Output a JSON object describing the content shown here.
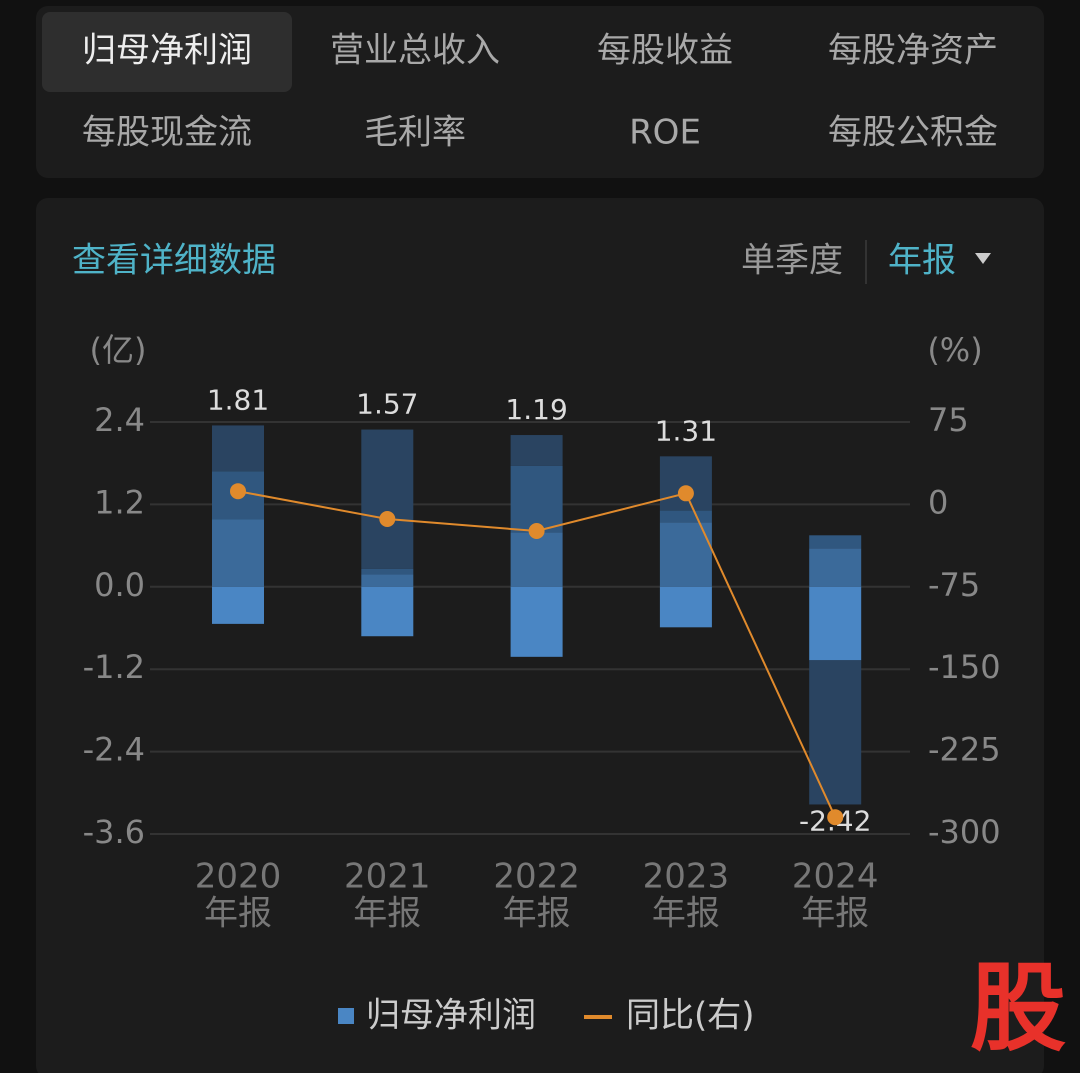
{
  "tabs": [
    "归母净利润",
    "营业总收入",
    "每股收益",
    "每股净资产",
    "每股现金流",
    "毛利率",
    "ROE",
    "每股公积金"
  ],
  "link": "查看详细数据",
  "period_options": [
    "单季度",
    "年报"
  ],
  "watermark": "股",
  "chart_data": {
    "type": "bar",
    "y_unit": "(亿)",
    "y2_unit": "(%)",
    "categories": [
      "2020",
      "2021",
      "2022",
      "2023",
      "2024"
    ],
    "category_suffix": [
      "年报",
      "年报",
      "年报",
      "年报",
      "年报"
    ],
    "ylim": [
      -3.6,
      2.4
    ],
    "yticks": [
      2.4,
      1.2,
      {
        "value": 0,
        "label": "0.0"
      },
      -1.2,
      -2.4,
      -3.6
    ],
    "y2lim": [
      -300,
      75
    ],
    "y2ticks": [
      75,
      0,
      -75,
      -150,
      -225,
      -300
    ],
    "grid": true,
    "stacks": [
      {
        "values": [
          0.98,
          0.7,
          0.67,
          -0.54
        ],
        "colors": [
          "#3b6a9a",
          "#30577f",
          "#2a4461",
          "#4a86c4"
        ]
      },
      {
        "values": [
          0.18,
          0.08,
          2.03,
          -0.72
        ],
        "colors": [
          "#3b6a9a",
          "#30577f",
          "#2a4461",
          "#4a86c4"
        ]
      },
      {
        "values": [
          0.79,
          0.97,
          0.45,
          -1.02
        ],
        "colors": [
          "#3b6a9a",
          "#30577f",
          "#2a4461",
          "#4a86c4"
        ]
      },
      {
        "values": [
          0.94,
          0.17,
          0.79,
          -0.59
        ],
        "colors": [
          "#3b6a9a",
          "#30577f",
          "#2a4461",
          "#4a86c4"
        ]
      },
      {
        "values": [
          0.56,
          0.19,
          -1.07,
          -2.1
        ],
        "colors": [
          "#3b6a9a",
          "#30577f",
          "#4a86c4",
          "#2a4461"
        ]
      }
    ],
    "series": [
      {
        "name": "归母净利润",
        "color": "#4a86c4",
        "values": [
          1.81,
          1.57,
          1.19,
          1.31,
          -2.42
        ]
      },
      {
        "name": "同比(右)",
        "color": "#e08a2c",
        "axis": "y2",
        "values": [
          12,
          -13.3,
          -24.2,
          10.1,
          -284.7
        ]
      }
    ]
  }
}
